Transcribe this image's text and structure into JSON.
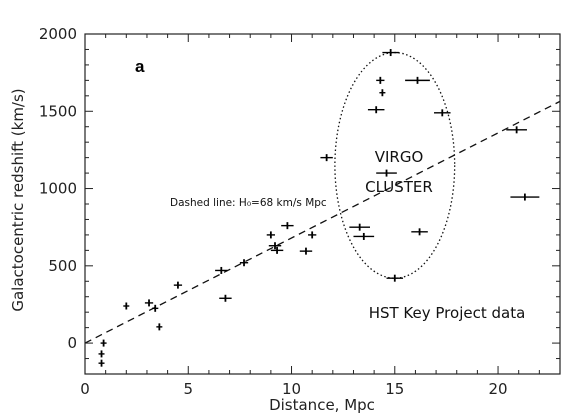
{
  "chart_data": {
    "type": "scatter",
    "panel_label": "a",
    "xlabel": "Distance, Mpc",
    "ylabel": "Galactocentric redshift (km/s)",
    "xlim": [
      0,
      23
    ],
    "ylim": [
      -200,
      2000
    ],
    "xticks": [
      0,
      5,
      10,
      15,
      20
    ],
    "yticks": [
      0,
      500,
      1000,
      1500,
      2000
    ],
    "grid": false,
    "fit_line": {
      "label": "Dashed line: H₀=68 km/s Mpc",
      "slope": 68,
      "intercept": 0,
      "style": "dashed"
    },
    "highlight_region": {
      "shape": "ellipse",
      "label_lines": [
        "VIRGO",
        "CLUSTER"
      ],
      "center": [
        15,
        1150
      ],
      "radii": [
        2.9,
        730
      ],
      "style": "dotted"
    },
    "annotation": "HST Key Project data",
    "points": [
      {
        "x": 0.8,
        "y": -130,
        "xerr": 0
      },
      {
        "x": 0.8,
        "y": -70,
        "xerr": 0
      },
      {
        "x": 0.9,
        "y": 0,
        "xerr": 0
      },
      {
        "x": 2.0,
        "y": 240,
        "xerr": 0.1
      },
      {
        "x": 3.1,
        "y": 260,
        "xerr": 0.2
      },
      {
        "x": 3.4,
        "y": 225,
        "xerr": 0.15
      },
      {
        "x": 3.6,
        "y": 105,
        "xerr": 0.1
      },
      {
        "x": 4.5,
        "y": 375,
        "xerr": 0.2
      },
      {
        "x": 6.6,
        "y": 470,
        "xerr": 0.3
      },
      {
        "x": 6.8,
        "y": 290,
        "xerr": 0.3
      },
      {
        "x": 7.7,
        "y": 520,
        "xerr": 0.2
      },
      {
        "x": 9.0,
        "y": 700,
        "xerr": 0.2
      },
      {
        "x": 9.2,
        "y": 630,
        "xerr": 0.3
      },
      {
        "x": 9.3,
        "y": 600,
        "xerr": 0.3
      },
      {
        "x": 9.8,
        "y": 760,
        "xerr": 0.3
      },
      {
        "x": 10.7,
        "y": 595,
        "xerr": 0.3
      },
      {
        "x": 11.0,
        "y": 700,
        "xerr": 0.2
      },
      {
        "x": 11.7,
        "y": 1200,
        "xerr": 0.3
      },
      {
        "x": 13.3,
        "y": 750,
        "xerr": 0.5
      },
      {
        "x": 13.5,
        "y": 690,
        "xerr": 0.5
      },
      {
        "x": 14.1,
        "y": 1510,
        "xerr": 0.4
      },
      {
        "x": 14.3,
        "y": 1700,
        "xerr": 0.2
      },
      {
        "x": 14.4,
        "y": 1620,
        "xerr": 0.1
      },
      {
        "x": 14.6,
        "y": 1100,
        "xerr": 0.5
      },
      {
        "x": 14.8,
        "y": 1880,
        "xerr": 0.4
      },
      {
        "x": 15.0,
        "y": 420,
        "xerr": 0.4
      },
      {
        "x": 16.1,
        "y": 1700,
        "xerr": 0.6
      },
      {
        "x": 16.2,
        "y": 720,
        "xerr": 0.4
      },
      {
        "x": 17.3,
        "y": 1490,
        "xerr": 0.4
      },
      {
        "x": 20.9,
        "y": 1380,
        "xerr": 0.5
      },
      {
        "x": 21.3,
        "y": 945,
        "xerr": 0.7
      }
    ]
  }
}
